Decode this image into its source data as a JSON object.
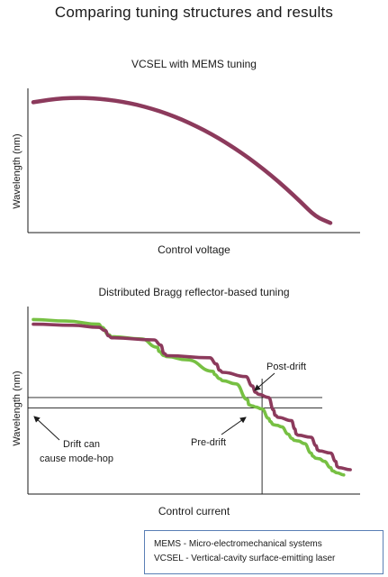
{
  "page_title": "Comparing tuning structures and results",
  "chart_data": [
    {
      "type": "line",
      "title": "VCSEL with MEMS tuning",
      "xlabel": "Control voltage",
      "ylabel": "Wavelength (nm)",
      "axis_ticks": false,
      "series": [
        {
          "color": "#8c3a5c",
          "x": [
            0.0,
            0.05,
            0.1,
            0.15,
            0.2,
            0.25,
            0.3,
            0.35,
            0.4,
            0.45,
            0.5,
            0.55,
            0.6,
            0.65,
            0.7,
            0.75,
            0.8,
            0.85,
            0.9,
            0.95,
            1.0
          ],
          "y": [
            0.96,
            0.98,
            0.992,
            0.996,
            0.993,
            0.982,
            0.964,
            0.939,
            0.906,
            0.866,
            0.818,
            0.762,
            0.698,
            0.626,
            0.546,
            0.458,
            0.361,
            0.256,
            0.143,
            0.022,
            -0.03
          ]
        }
      ]
    },
    {
      "type": "line",
      "title": "Distributed Bragg reflector-based tuning",
      "xlabel": "Control current",
      "ylabel": "Wavelength (nm)",
      "axis_ticks": false,
      "series": [
        {
          "color": "#77c043",
          "x": [
            0.0,
            0.1,
            0.2,
            0.21,
            0.23,
            0.24,
            0.33,
            0.38,
            0.385,
            0.4,
            0.41,
            0.47,
            0.55,
            0.555,
            0.57,
            0.58,
            0.62,
            0.655,
            0.66,
            0.67,
            0.68,
            0.7,
            0.72,
            0.725,
            0.735,
            0.745,
            0.76,
            0.78,
            0.79,
            0.8,
            0.81,
            0.83,
            0.85,
            0.855,
            0.865,
            0.875,
            0.89,
            0.91,
            0.915,
            0.93,
            0.95
          ],
          "y": [
            0.945,
            0.93,
            0.9,
            0.87,
            0.8,
            0.78,
            0.76,
            0.68,
            0.64,
            0.6,
            0.59,
            0.56,
            0.45,
            0.42,
            0.38,
            0.36,
            0.33,
            0.18,
            0.13,
            0.12,
            0.11,
            0.09,
            0.0,
            -0.03,
            -0.06,
            -0.065,
            -0.08,
            -0.15,
            -0.19,
            -0.21,
            -0.215,
            -0.24,
            -0.33,
            -0.36,
            -0.38,
            -0.385,
            -0.41,
            -0.47,
            -0.5,
            -0.52,
            -0.54
          ]
        },
        {
          "color": "#8c3a5c",
          "x": [
            0.0,
            0.12,
            0.2,
            0.22,
            0.23,
            0.24,
            0.37,
            0.39,
            0.4,
            0.41,
            0.54,
            0.56,
            0.57,
            0.58,
            0.65,
            0.67,
            0.68,
            0.69,
            0.72,
            0.735,
            0.74,
            0.75,
            0.79,
            0.8,
            0.805,
            0.81,
            0.85,
            0.865,
            0.87,
            0.875,
            0.91,
            0.925,
            0.93,
            0.935,
            0.97
          ],
          "y": [
            0.9,
            0.89,
            0.87,
            0.84,
            0.79,
            0.77,
            0.75,
            0.7,
            0.62,
            0.6,
            0.58,
            0.52,
            0.46,
            0.44,
            0.4,
            0.31,
            0.25,
            0.23,
            0.2,
            0.08,
            0.03,
            0.01,
            -0.02,
            -0.1,
            -0.15,
            -0.16,
            -0.18,
            -0.26,
            -0.3,
            -0.31,
            -0.33,
            -0.41,
            -0.46,
            -0.47,
            -0.49
          ]
        }
      ],
      "reference_lines": {
        "horizontal_y": [
          0.2,
          0.1
        ],
        "vertical_x": 0.7
      },
      "annotations": {
        "post_drift": "Post-drift",
        "pre_drift": "Pre-drift",
        "mode_hop_line1": "Drift can",
        "mode_hop_line2": "cause mode-hop"
      }
    }
  ],
  "legend": {
    "line1": "MEMS - Micro-electromechanical systems",
    "line2": "VCSEL - Vertical-cavity surface-emitting laser"
  }
}
